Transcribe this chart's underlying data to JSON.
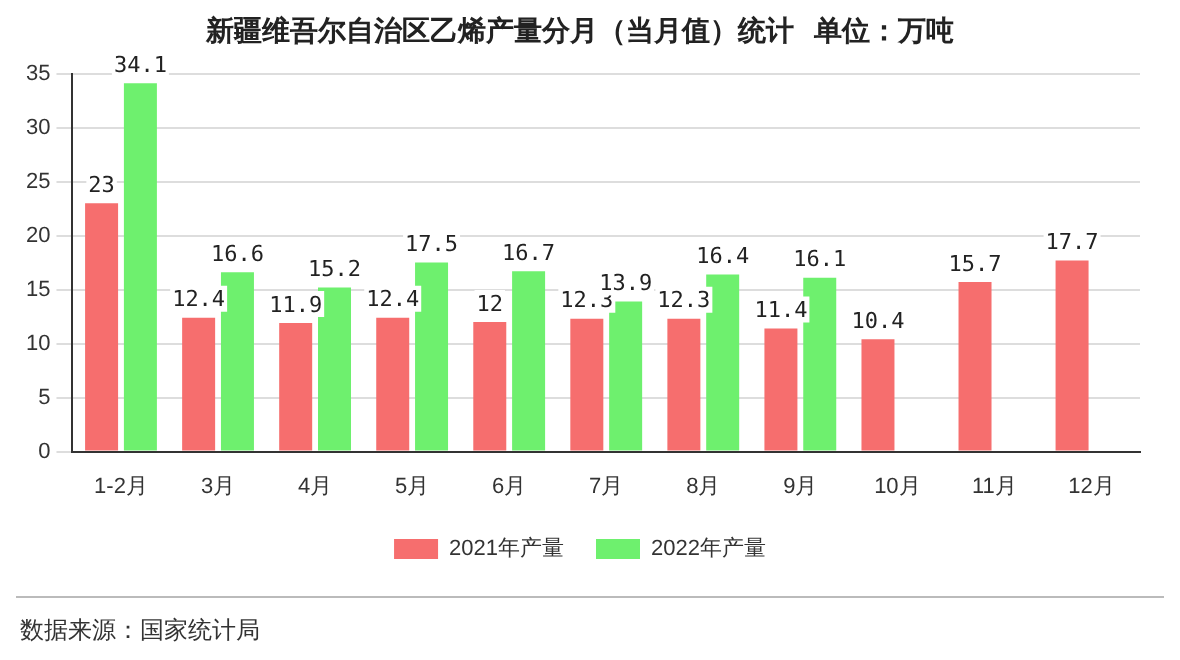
{
  "chart_data": {
    "type": "bar",
    "title": "新疆维吾尔自治区乙烯产量分月（当月值）统计  单位：万吨",
    "categories": [
      "1-2月",
      "3月",
      "4月",
      "5月",
      "6月",
      "7月",
      "8月",
      "9月",
      "10月",
      "11月",
      "12月"
    ],
    "series": [
      {
        "name": "2021年产量",
        "color": "#f66e6e",
        "values": [
          23,
          12.4,
          11.9,
          12.4,
          12,
          12.3,
          12.3,
          11.4,
          10.4,
          15.7,
          17.7
        ]
      },
      {
        "name": "2022年产量",
        "color": "#6ef06e",
        "values": [
          34.1,
          16.6,
          15.2,
          17.5,
          16.7,
          13.9,
          16.4,
          16.1,
          null,
          null,
          null
        ]
      }
    ],
    "ylim": [
      0,
      35
    ],
    "yticks": [
      0,
      5,
      10,
      15,
      20,
      25,
      30,
      35
    ],
    "grid": "y",
    "legend": "bottom",
    "data_labels": true,
    "annotations": [
      "数据来源：国家统计局"
    ]
  }
}
